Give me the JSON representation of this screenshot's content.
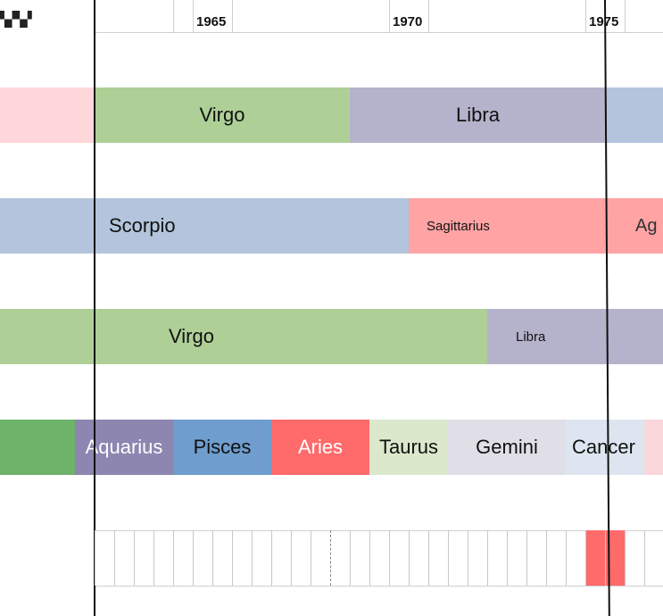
{
  "axis": {
    "ticks": [
      "1965",
      "1970",
      "1975"
    ]
  },
  "rows": [
    {
      "name": "row-1",
      "segments": [
        {
          "label": "",
          "color": "#ffd6d9"
        },
        {
          "label": "Virgo",
          "color": "#aed096"
        },
        {
          "label": "Libra",
          "color": "#b5b2cb"
        },
        {
          "label": "",
          "color": "#b3c5dc"
        }
      ]
    },
    {
      "name": "row-2",
      "segments": [
        {
          "label": "",
          "color": "#b3c5dc"
        },
        {
          "label": "Scorpio",
          "color": "#b3c5dc"
        },
        {
          "label": "Sagittarius",
          "color": "#ffa3a5"
        },
        {
          "label": "Ag",
          "color": "#ffa3a5"
        }
      ]
    },
    {
      "name": "row-3",
      "segments": [
        {
          "label": "",
          "color": "#aed096"
        },
        {
          "label": "Virgo",
          "color": "#aed096"
        },
        {
          "label": "Libra",
          "color": "#b5b2cb"
        }
      ]
    },
    {
      "name": "row-4",
      "segments": [
        {
          "label": "",
          "color": "#6db36a"
        },
        {
          "label": "Aquarius",
          "color": "#8c86b0"
        },
        {
          "label": "Pisces",
          "color": "#6f9dcd"
        },
        {
          "label": "Aries",
          "color": "#ff6b6b"
        },
        {
          "label": "Taurus",
          "color": "#dbe8cc"
        },
        {
          "label": "Gemini",
          "color": "#e0dfe8"
        },
        {
          "label": "Cancer",
          "color": "#dde6f0"
        },
        {
          "label": "",
          "color": "#fad7da"
        }
      ]
    }
  ],
  "highlight_color": "#ff6b6b"
}
